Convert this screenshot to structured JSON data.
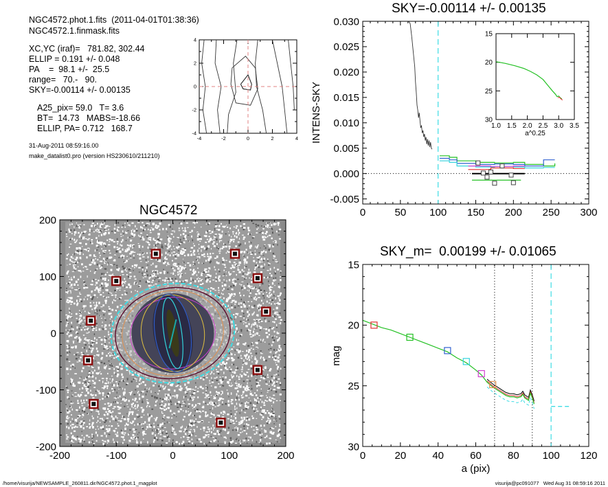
{
  "header": {
    "fits_line": "NGC4572.phot.1.fits  (2011-04-01T01:38:36)",
    "mask_line": "NGC4572.1.finmask.fits",
    "params": [
      "XC,YC (iraf)=   781.82, 302.44",
      "ELLIP = 0.191 +/- 0.048",
      "PA    =  98.1 +/-  25.5",
      "range=   70.-   90.",
      "SKY=-0.00114 +/- 0.00135"
    ],
    "results": [
      "A25_pix= 59.0   T= 3.6",
      "BT=  14.73   MABS=-18.66",
      "ELLIP, PA= 0.712   168.7"
    ],
    "date": "31-Aug-2011 08:59:16.00",
    "program": "make_datalist0.pro (version HS230610/211210)"
  },
  "footer": {
    "path": "/home/visurija/NEWSAMPLE_260811.dir/NGC4572.phot.1_magplot",
    "user": "visurija@pc091077   Wed Aug 31 08:59:16 2011"
  },
  "colors": {
    "cyan": "#33d4dc",
    "red": "#e03030",
    "green": "#22c022",
    "blue": "#3060d0",
    "magenta": "#d040d0",
    "orange": "#e09050",
    "sky_dash": "#3cdce4"
  },
  "chart_data": [
    {
      "id": "contour",
      "type": "contour",
      "xlim": [
        -4,
        4
      ],
      "ylim": [
        -4,
        4
      ],
      "xticks": [
        "-4",
        "-2",
        "0",
        "2",
        "4"
      ],
      "yticks": [
        "-4",
        "-2",
        "0",
        "2",
        "4"
      ]
    },
    {
      "id": "sky",
      "type": "line",
      "title": "SKY=-0.00114 +/- 0.00135",
      "xlabel": "",
      "ylabel": "INTENS-SKY",
      "xlim": [
        0,
        300
      ],
      "ylim": [
        -0.006,
        0.03
      ],
      "xticks": [
        "0",
        "50",
        "100",
        "150",
        "200",
        "250",
        "300"
      ],
      "yticks": [
        "-0.005",
        "0.000",
        "0.005",
        "0.010",
        "0.015",
        "0.020",
        "0.025",
        "0.030"
      ],
      "vline_x": 100,
      "profile": [
        [
          63,
          0.032
        ],
        [
          65,
          0.027
        ],
        [
          67,
          0.024
        ],
        [
          69,
          0.021
        ],
        [
          70,
          0.018
        ],
        [
          71,
          0.016
        ],
        [
          72,
          0.0135
        ],
        [
          73,
          0.0125
        ],
        [
          74,
          0.011
        ],
        [
          75,
          0.012
        ],
        [
          76,
          0.0105
        ],
        [
          77,
          0.009
        ],
        [
          78,
          0.0095
        ],
        [
          79,
          0.008
        ],
        [
          80,
          0.0085
        ],
        [
          81,
          0.0072
        ],
        [
          82,
          0.0078
        ],
        [
          83,
          0.0065
        ],
        [
          84,
          0.0072
        ],
        [
          85,
          0.0058
        ],
        [
          86,
          0.0068
        ],
        [
          87,
          0.0055
        ],
        [
          88,
          0.0065
        ],
        [
          89,
          0.0052
        ],
        [
          90,
          0.0062
        ],
        [
          91,
          0.005
        ],
        [
          92,
          0.0048
        ]
      ],
      "step_series": [
        {
          "color": "#22c022",
          "points": [
            [
              102,
              0.0035
            ],
            [
              115,
              0.0032
            ],
            [
              125,
              0.0025
            ],
            [
              150,
              0.0022
            ],
            [
              175,
              0.0021
            ],
            [
              200,
              0.0022
            ],
            [
              215,
              0.0018
            ],
            [
              240,
              0.0015
            ],
            [
              255,
              0.002
            ]
          ]
        },
        {
          "color": "#3060d0",
          "points": [
            [
              102,
              0.003
            ],
            [
              115,
              0.0027
            ],
            [
              125,
              0.002
            ],
            [
              150,
              0.0018
            ],
            [
              175,
              0.0019
            ],
            [
              200,
              0.0018
            ],
            [
              215,
              0.0015
            ],
            [
              240,
              0.0027
            ],
            [
              255,
              0.0027
            ]
          ]
        },
        {
          "color": "#33d4dc",
          "points": [
            [
              102,
              0.0025
            ],
            [
              115,
              0.0022
            ],
            [
              125,
              0.0015
            ],
            [
              150,
              0.0013
            ],
            [
              175,
              0.0014
            ],
            [
              200,
              0.0013
            ],
            [
              215,
              0.0011
            ],
            [
              240,
              0.0012
            ],
            [
              255,
              0.0012
            ]
          ]
        },
        {
          "color": "#e03030",
          "points": [
            [
              140,
              0.0008
            ],
            [
              170,
              0.0011
            ],
            [
              200,
              0.001
            ],
            [
              215,
              0.001
            ]
          ]
        },
        {
          "color": "#d040d0",
          "points": [
            [
              140,
              0.0015
            ],
            [
              170,
              0.0014
            ],
            [
              200,
              0.0015
            ],
            [
              215,
              0.0015
            ]
          ]
        }
      ],
      "sky_mean": {
        "x": [
          145,
          215
        ],
        "y": -1e-05
      },
      "green_lower": {
        "x": [
          145,
          210
        ],
        "y": -0.0013
      },
      "squares": [
        [
          153,
          0.0021
        ],
        [
          160,
          0.0001
        ],
        [
          165,
          -0.0007
        ],
        [
          170,
          0.0003
        ],
        [
          175,
          -0.0019
        ],
        [
          185,
          0.0015
        ],
        [
          197,
          -0.0003
        ],
        [
          200,
          -0.0018
        ]
      ],
      "inset": {
        "xlim": [
          1.0,
          3.5
        ],
        "ylim": [
          15,
          30
        ],
        "xticks": [
          "1.0",
          "1.5",
          "2.0",
          "2.5",
          "3.0",
          "3.5"
        ],
        "yticks": [
          "15",
          "20",
          "25",
          "30"
        ],
        "xlabel": "a^0.25",
        "curve": [
          [
            1.0,
            19.9
          ],
          [
            1.3,
            20.2
          ],
          [
            1.6,
            20.6
          ],
          [
            1.9,
            21.1
          ],
          [
            2.1,
            21.6
          ],
          [
            2.3,
            22.2
          ],
          [
            2.5,
            23.0
          ],
          [
            2.65,
            24.0
          ],
          [
            2.8,
            25.0
          ],
          [
            2.9,
            25.6
          ],
          [
            2.95,
            26.0
          ],
          [
            3.0,
            25.9
          ],
          [
            3.05,
            26.2
          ],
          [
            3.1,
            26.4
          ]
        ]
      }
    },
    {
      "id": "image",
      "type": "image",
      "title": "NGC4572",
      "xlim": [
        -200,
        200
      ],
      "ylim": [
        -200,
        200
      ],
      "xticks": [
        "-200",
        "-100",
        "0",
        "100",
        "200"
      ],
      "yticks": [
        "-200",
        "-100",
        "0",
        "100",
        "200"
      ],
      "stars": [
        [
          -30,
          140
        ],
        [
          110,
          140
        ],
        [
          -100,
          92
        ],
        [
          150,
          97
        ],
        [
          -145,
          22
        ],
        [
          165,
          38
        ],
        [
          -150,
          -48
        ],
        [
          150,
          -65
        ],
        [
          -140,
          -125
        ],
        [
          85,
          -158
        ]
      ]
    },
    {
      "id": "mag",
      "type": "line",
      "title": "SKY_m=  0.00199 +/- 0.01065",
      "xlabel": "a (pix)",
      "ylabel": "mag",
      "xlim": [
        0,
        120
      ],
      "ylim": [
        15,
        30
      ],
      "xticks": [
        "0",
        "20",
        "40",
        "60",
        "80",
        "100",
        "120"
      ],
      "yticks": [
        "15",
        "20",
        "25",
        "30"
      ],
      "vlines": [
        70,
        90
      ],
      "sky_vline": 100,
      "sky_hline": {
        "x": [
          100,
          110
        ],
        "y": 26.7
      },
      "curve": [
        [
          0,
          19.6
        ],
        [
          5,
          19.9
        ],
        [
          10,
          20.2
        ],
        [
          15,
          20.4
        ],
        [
          20,
          20.7
        ],
        [
          25,
          21.0
        ],
        [
          30,
          21.3
        ],
        [
          35,
          21.6
        ],
        [
          40,
          21.9
        ],
        [
          45,
          22.2
        ],
        [
          50,
          22.7
        ],
        [
          55,
          23.1
        ],
        [
          60,
          23.7
        ],
        [
          63,
          24.1
        ],
        [
          66,
          24.7
        ],
        [
          69,
          25.1
        ],
        [
          70,
          25.2
        ],
        [
          72,
          25.4
        ],
        [
          74,
          25.6
        ],
        [
          76,
          25.8
        ],
        [
          78,
          25.9
        ],
        [
          80,
          25.9
        ],
        [
          82,
          26.0
        ],
        [
          84,
          25.9
        ],
        [
          85,
          25.7
        ],
        [
          86,
          26.0
        ],
        [
          87,
          26.1
        ],
        [
          88,
          26.2
        ],
        [
          89,
          25.6
        ],
        [
          90,
          26.0
        ],
        [
          91,
          26.5
        ]
      ],
      "squares": [
        {
          "x": 6,
          "y": 20.0,
          "color": "#e03030"
        },
        {
          "x": 25,
          "y": 21.0,
          "color": "#22c022"
        },
        {
          "x": 45,
          "y": 22.1,
          "color": "#3060d0"
        },
        {
          "x": 55,
          "y": 23.0,
          "color": "#33d4dc"
        },
        {
          "x": 63,
          "y": 24.0,
          "color": "#d040d0"
        },
        {
          "x": 69,
          "y": 24.9,
          "color": "#e09050"
        }
      ]
    }
  ]
}
